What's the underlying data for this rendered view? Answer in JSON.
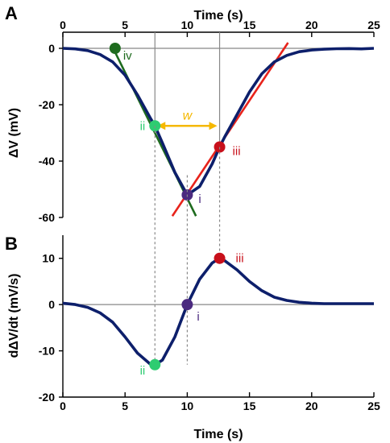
{
  "chart_data": [
    {
      "panel": "A",
      "type": "line",
      "xlabel": "Time (s)",
      "ylabel": "ΔV (mV)",
      "xlim": [
        0,
        25
      ],
      "ylim": [
        -60,
        0
      ],
      "x_ticks": [
        "0",
        "5",
        "10",
        "15",
        "20",
        "25"
      ],
      "y_ticks": [
        "0",
        "-20",
        "-40",
        "-60"
      ],
      "x_axis_position": "top",
      "colors": {
        "curve": "#0d1f6b",
        "tangent_left": "#1e6b1e",
        "tangent_right": "#e8231b",
        "width": "#f5b800",
        "guide": "#888888"
      },
      "series": [
        {
          "x": [
            0,
            1,
            2,
            3,
            4,
            5,
            6,
            7,
            7.4,
            8,
            9,
            10,
            11,
            12,
            12.6,
            13,
            14,
            15,
            16,
            17,
            18,
            19,
            20,
            21,
            22,
            23,
            24,
            25
          ],
          "y": [
            0,
            -0.2,
            -0.8,
            -2.2,
            -4.8,
            -9.5,
            -16.5,
            -24.5,
            -27.5,
            -33.5,
            -44,
            -52,
            -49,
            -41,
            -35,
            -31.5,
            -23.5,
            -15.5,
            -9,
            -4.8,
            -2.5,
            -1.2,
            -0.6,
            -0.3,
            -0.15,
            -0.1,
            -0.2,
            0
          ]
        }
      ],
      "points": [
        {
          "label": "iv",
          "x": 4.2,
          "y": 0,
          "color": "#1e6b1e"
        },
        {
          "label": "ii",
          "x": 7.4,
          "y": -27.5,
          "color": "#2ecc71"
        },
        {
          "label": "i",
          "x": 10,
          "y": -52,
          "color": "#4b2a7f"
        },
        {
          "label": "iii",
          "x": 12.6,
          "y": -35,
          "color": "#c8101b"
        }
      ],
      "tangents": [
        {
          "x": [
            3.9,
            10.7
          ],
          "y": [
            1.3,
            -59.5
          ]
        },
        {
          "x": [
            8.8,
            18.1
          ],
          "y": [
            -59.5,
            2
          ]
        }
      ],
      "width_marker": {
        "label": "w",
        "x": [
          7.4,
          12.6
        ],
        "y": -27.5
      },
      "guides_x": [
        7.4,
        10,
        12.6
      ]
    },
    {
      "panel": "B",
      "type": "line",
      "xlabel": "Time (s)",
      "ylabel": "dΔV/dt (mV/s)",
      "xlim": [
        0,
        25
      ],
      "ylim": [
        -20,
        15
      ],
      "x_ticks": [
        "0",
        "5",
        "10",
        "15",
        "20",
        "25"
      ],
      "y_ticks": [
        "10",
        "0",
        "-10",
        "-20"
      ],
      "x_axis_position": "bottom",
      "series": [
        {
          "x": [
            0,
            1,
            2,
            3,
            4,
            5,
            6,
            7,
            7.4,
            8,
            9,
            10,
            11,
            12,
            12.6,
            13,
            14,
            15,
            16,
            17,
            18,
            19,
            20,
            21,
            22,
            23,
            24,
            25
          ],
          "y": [
            0.3,
            0,
            -0.6,
            -1.8,
            -3.8,
            -7,
            -10.5,
            -12.8,
            -13,
            -12,
            -7,
            0,
            5.5,
            9,
            10,
            9.5,
            7.5,
            5,
            3,
            1.6,
            0.9,
            0.5,
            0.3,
            0.2,
            0.2,
            0.2,
            0.2,
            0.2
          ]
        }
      ],
      "points": [
        {
          "label": "ii",
          "x": 7.4,
          "y": -13,
          "color": "#2ecc71"
        },
        {
          "label": "i",
          "x": 10,
          "y": 0,
          "color": "#4b2a7f"
        },
        {
          "label": "iii",
          "x": 12.6,
          "y": 10,
          "color": "#c8101b"
        }
      ]
    }
  ]
}
